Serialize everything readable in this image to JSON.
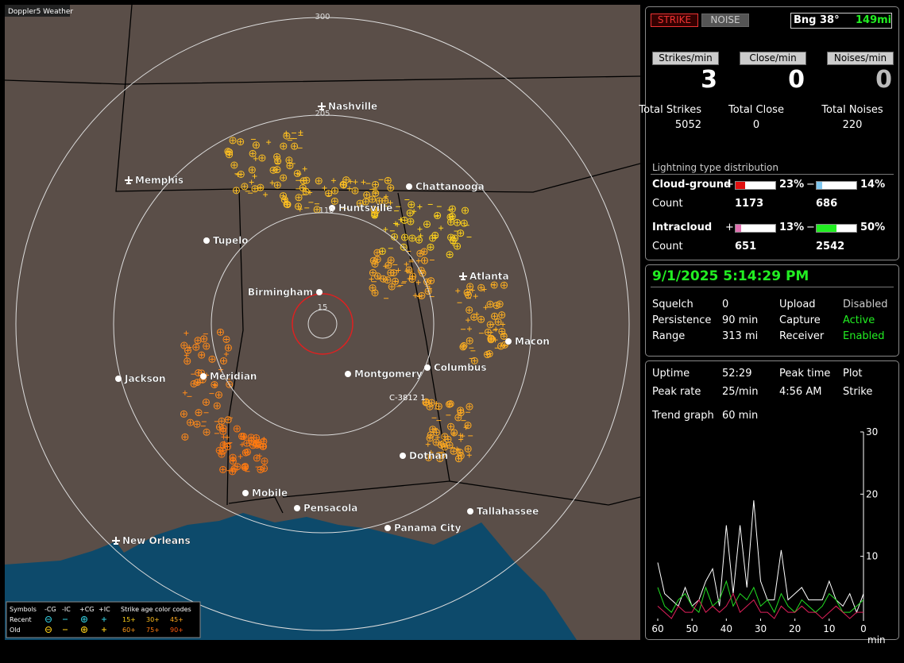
{
  "app_title": "Doppler5 Weather",
  "map": {
    "range_labels": [
      300,
      205,
      110,
      15
    ],
    "cities": [
      "Nashville",
      "Memphis",
      "Chattanooga",
      "Huntsville",
      "Tupelo",
      "Atlanta",
      "Birmingham",
      "Macon",
      "Jackson",
      "Meridian",
      "Montgomery",
      "Columbus",
      "Dothan",
      "Mobile",
      "Pensacola",
      "Tallahassee",
      "Panama City",
      "New Orleans"
    ],
    "marker_label": "C-3812 1"
  },
  "legend": {
    "symbols_title": "Symbols",
    "symbols": [
      "-CG",
      "-IC",
      "+CG",
      "+IC"
    ],
    "age_title": "Strike age color codes",
    "rows": [
      "Recent",
      "Old"
    ],
    "ages": [
      "15+",
      "30+",
      "45+",
      "60+",
      "75+",
      "90+"
    ]
  },
  "status": {
    "buttons": [
      "STRIKE",
      "NOISE"
    ],
    "bearing": "Bng 38°",
    "distance": "149mi",
    "rates": [
      {
        "label": "Strikes/min",
        "value": 3
      },
      {
        "label": "Close/min",
        "value": 0
      },
      {
        "label": "Noises/min",
        "value": 0
      }
    ],
    "totals": [
      {
        "label": "Total Strikes",
        "value": 5052
      },
      {
        "label": "Total Close",
        "value": 0
      },
      {
        "label": "Total Noises",
        "value": 220
      }
    ],
    "distribution_title": "Lightning type distribution",
    "count_label": "Count",
    "types": [
      {
        "name": "Cloud-ground",
        "pos": {
          "value": 23,
          "label": "23%"
        },
        "neg": {
          "value": 14,
          "label": "14%"
        },
        "pos_count": 1173,
        "neg_count": 686
      },
      {
        "name": "Intracloud",
        "pos": {
          "value": 13,
          "label": "13%"
        },
        "neg": {
          "value": 50,
          "label": "50%"
        },
        "pos_count": 651,
        "neg_count": 2542
      }
    ],
    "signs": [
      "+",
      "−"
    ]
  },
  "settings": {
    "datetime": "9/1/2025 5:14:29 PM",
    "rows": [
      [
        "Squelch",
        "0",
        "Upload",
        "Disabled"
      ],
      [
        "Persistence",
        "90 min",
        "Capture",
        "Active"
      ],
      [
        "Range",
        "313 mi",
        "Receiver",
        "Enabled"
      ]
    ]
  },
  "stats": {
    "rows": [
      [
        "Uptime",
        "52:29",
        "Peak time",
        "4:56 AM",
        "Plot"
      ],
      [
        "Peak rate",
        "25/min",
        "",
        "",
        "Strike"
      ]
    ],
    "trend_label": "Trend graph",
    "trend_value": "60 min"
  },
  "chart_data": {
    "type": "line",
    "xlabel": "min",
    "xlim": [
      60,
      0
    ],
    "ylim": [
      0,
      30
    ],
    "xticks": [
      60,
      50,
      40,
      30,
      20,
      10,
      0
    ],
    "yticks": [
      10,
      20,
      30
    ],
    "x": [
      60,
      58,
      56,
      54,
      52,
      50,
      48,
      46,
      44,
      42,
      40,
      38,
      36,
      34,
      32,
      30,
      28,
      26,
      24,
      22,
      20,
      18,
      16,
      14,
      12,
      10,
      8,
      6,
      4,
      2,
      0
    ],
    "series": [
      {
        "color": "#ffffff",
        "values": [
          9,
          4,
          3,
          2,
          5,
          2,
          3,
          6,
          8,
          2,
          15,
          4,
          15,
          5,
          19,
          6,
          3,
          3,
          11,
          3,
          4,
          5,
          3,
          3,
          3,
          6,
          3,
          2,
          4,
          1,
          4
        ]
      },
      {
        "color": "#22dd22",
        "values": [
          5,
          2,
          1,
          3,
          4,
          2,
          1,
          5,
          2,
          3,
          6,
          2,
          4,
          3,
          5,
          2,
          3,
          1,
          4,
          2,
          1,
          3,
          2,
          1,
          2,
          4,
          3,
          1,
          1,
          2,
          3
        ]
      },
      {
        "color": "#e0205a",
        "values": [
          2,
          1,
          0,
          2,
          1,
          1,
          3,
          1,
          2,
          1,
          2,
          4,
          1,
          2,
          3,
          1,
          1,
          0,
          2,
          1,
          1,
          2,
          1,
          1,
          0,
          1,
          2,
          1,
          0,
          1,
          1
        ]
      }
    ]
  }
}
